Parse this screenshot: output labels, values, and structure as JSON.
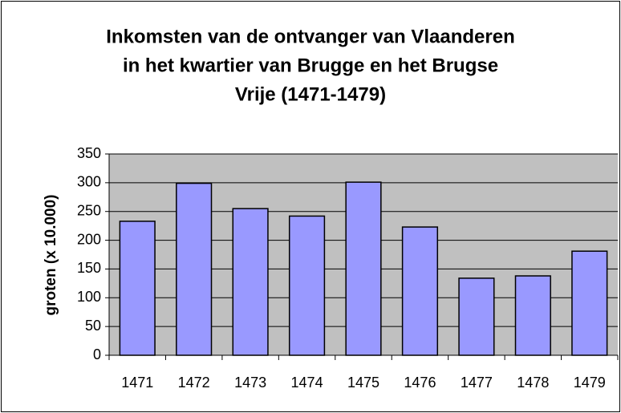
{
  "chart_data": {
    "type": "bar",
    "title": [
      "Inkomsten van de ontvanger van Vlaanderen",
      "in het kwartier van Brugge en het Brugse",
      "Vrije (1471-1479)"
    ],
    "ylabel": "groten (x 10.000)",
    "categories": [
      "1471",
      "1472",
      "1473",
      "1474",
      "1475",
      "1476",
      "1477",
      "1478",
      "1479"
    ],
    "values": [
      233,
      299,
      255,
      242,
      301,
      223,
      134,
      138,
      181
    ],
    "color": "#9999ff",
    "ylim": [
      0,
      350
    ],
    "yticks": [
      0,
      50,
      100,
      150,
      200,
      250,
      300,
      350
    ],
    "grid": true
  }
}
